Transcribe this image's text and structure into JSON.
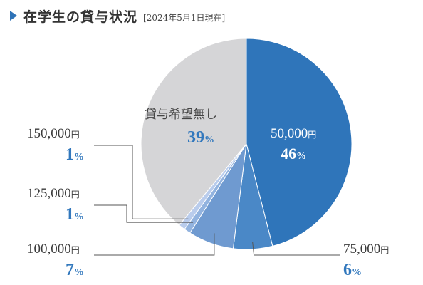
{
  "header": {
    "title": "在学生の貸与状況",
    "subtitle": "[2024年5月1日現在]"
  },
  "colors": {
    "accent": "#2f73b8",
    "slice_50000": "#2f75ba",
    "slice_75000": "#4a88c7",
    "slice_100000": "#6f9ad0",
    "slice_125000": "#92b3df",
    "slice_150000": "#b9ccec",
    "slice_none": "#d5d5d7"
  },
  "chart_data": {
    "type": "pie",
    "title": "在学生の貸与状況",
    "subtitle": "[2024年5月1日現在]",
    "slices": [
      {
        "label": "50,000",
        "unit": "円",
        "value": 46,
        "pct_text": "46",
        "pct_unit": "%"
      },
      {
        "label": "75,000",
        "unit": "円",
        "value": 6,
        "pct_text": "6",
        "pct_unit": "%"
      },
      {
        "label": "100,000",
        "unit": "円",
        "value": 7,
        "pct_text": "7",
        "pct_unit": "%"
      },
      {
        "label": "125,000",
        "unit": "円",
        "value": 1,
        "pct_text": "1",
        "pct_unit": "%"
      },
      {
        "label": "150,000",
        "unit": "円",
        "value": 1,
        "pct_text": "1",
        "pct_unit": "%"
      },
      {
        "label": "貸与希望無し",
        "unit": "",
        "value": 39,
        "pct_text": "39",
        "pct_unit": "%"
      }
    ]
  }
}
